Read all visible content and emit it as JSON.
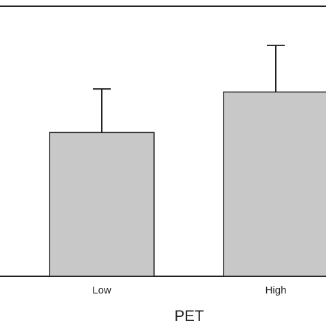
{
  "chart_data": {
    "type": "bar",
    "title": "",
    "xlabel": "PET",
    "ylabel": "",
    "categories": [
      "Low",
      "High"
    ],
    "values": [
      33,
      42.3
    ],
    "error_upper": [
      10,
      10.7
    ],
    "ylim": [
      0,
      62
    ],
    "grid": false,
    "legend": "none",
    "colors": {
      "bar_fill": "#c8c8c9",
      "bar_stroke": "#222222",
      "axis": "#222222",
      "error_bar": "#222222"
    }
  }
}
